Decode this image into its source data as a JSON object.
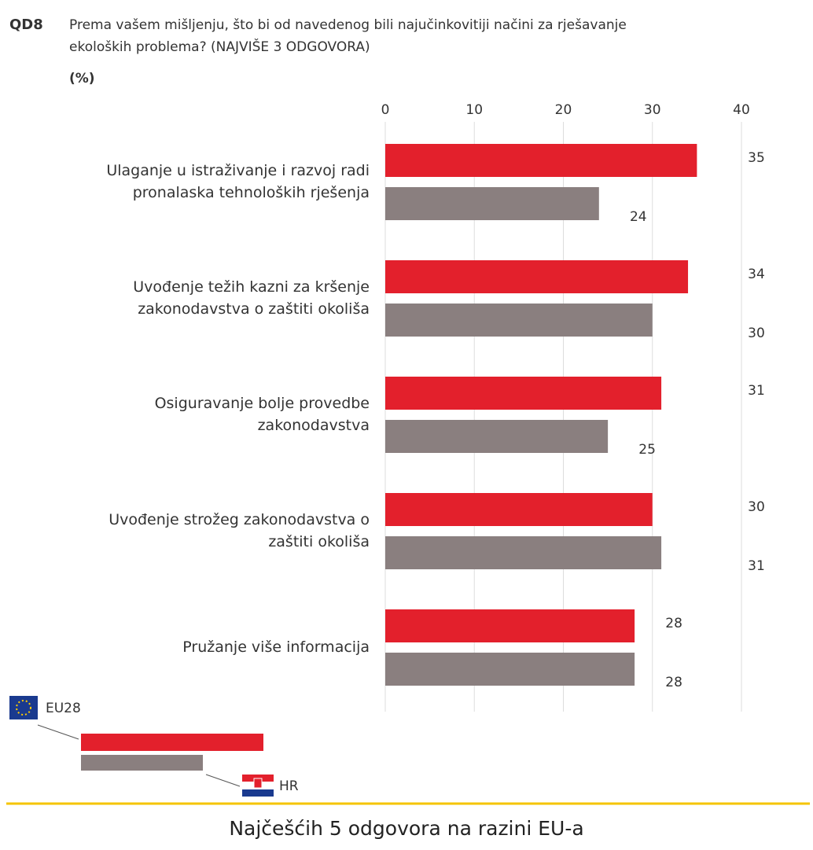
{
  "chart_data": {
    "type": "hbar",
    "code": "QD8",
    "title": [
      "Prema vašem mišljenju, što bi od navedenog bili najučinkovitiji načini za rješavanje",
      "ekoloških problema? (NAJVIŠE 3 ODGOVORA)"
    ],
    "subtitle": "(%)",
    "categories": [
      [
        "Ulaganje u istraživanje i razvoj radi",
        "pronalaska tehnoloških rješenja"
      ],
      [
        "Uvođenje težih kazni za kršenje",
        "zakonodavstva o zaštiti okoliša"
      ],
      [
        "Osiguravanje bolje provedbe",
        "zakonodavstva"
      ],
      [
        "Uvođenje strožeg zakonodavstva o",
        "zaštiti okoliša"
      ],
      [
        "Pružanje više informacija"
      ]
    ],
    "series": [
      {
        "name": "EU28",
        "color": "#e3202c",
        "values": [
          35,
          34,
          31,
          30,
          28
        ]
      },
      {
        "name": "HR",
        "color": "#8a7f7f",
        "values": [
          24,
          30,
          25,
          31,
          28
        ]
      }
    ],
    "xlim": [
      0,
      40
    ],
    "xticks": [
      0,
      10,
      20,
      30,
      40
    ],
    "grid": true,
    "footer": "Najčešćih 5 odgovora na razini EU-a"
  }
}
